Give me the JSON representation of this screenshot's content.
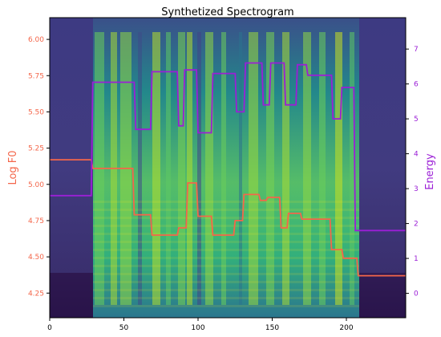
{
  "chart_data": {
    "type": "line",
    "title": "Synthetized Spectrogram",
    "background": "mel spectrogram heatmap (viridis colormap)",
    "grid": false,
    "legend": "none",
    "x_ticks": [
      0,
      50,
      100,
      150,
      200
    ],
    "xlim": [
      0,
      240
    ],
    "left_axis": {
      "label": "Log F0",
      "color": "#f4664a",
      "ylim": [
        4.08,
        6.15
      ],
      "ticks": [
        "4.25",
        "4.50",
        "4.75",
        "5.00",
        "5.25",
        "5.50",
        "5.75",
        "6.00"
      ]
    },
    "right_axis": {
      "label": "Energy",
      "color": "#9b1fd6",
      "ylim": [
        -0.7,
        7.9
      ],
      "ticks": [
        "0",
        "1",
        "2",
        "3",
        "4",
        "5",
        "6",
        "7"
      ]
    },
    "series": [
      {
        "name": "Log F0",
        "axis": "left",
        "color": "#f4664a",
        "x": [
          0,
          28,
          29,
          56,
          57,
          68,
          69,
          86,
          87,
          92,
          93,
          99,
          100,
          109,
          110,
          124,
          125,
          130,
          131,
          141,
          142,
          146,
          147,
          155,
          156,
          160,
          161,
          169,
          170,
          189,
          190,
          197,
          198,
          207,
          208,
          240
        ],
        "y": [
          5.17,
          5.17,
          5.11,
          5.11,
          4.79,
          4.79,
          4.65,
          4.65,
          4.7,
          4.7,
          5.01,
          5.01,
          4.78,
          4.78,
          4.65,
          4.65,
          4.75,
          4.75,
          4.93,
          4.93,
          4.89,
          4.89,
          4.91,
          4.91,
          4.7,
          4.7,
          4.8,
          4.8,
          4.76,
          4.76,
          4.55,
          4.55,
          4.49,
          4.49,
          4.37,
          4.37
        ]
      },
      {
        "name": "Energy",
        "axis": "right",
        "color": "#9b1fd6",
        "x": [
          0,
          28,
          29,
          57,
          58,
          68,
          69,
          86,
          87,
          90,
          91,
          99,
          100,
          109,
          110,
          125,
          126,
          131,
          132,
          143,
          144,
          148,
          149,
          158,
          159,
          166,
          167,
          173,
          174,
          190,
          191,
          196,
          197,
          205,
          206,
          240
        ],
        "y": [
          2.8,
          2.8,
          6.05,
          6.05,
          4.7,
          4.7,
          6.35,
          6.35,
          4.8,
          4.8,
          6.4,
          6.4,
          4.6,
          4.6,
          6.3,
          6.3,
          5.2,
          5.2,
          6.6,
          6.6,
          5.4,
          5.4,
          6.6,
          6.6,
          5.4,
          5.4,
          6.55,
          6.55,
          6.25,
          6.25,
          5.0,
          5.0,
          5.9,
          5.9,
          1.8,
          1.8
        ]
      }
    ]
  }
}
